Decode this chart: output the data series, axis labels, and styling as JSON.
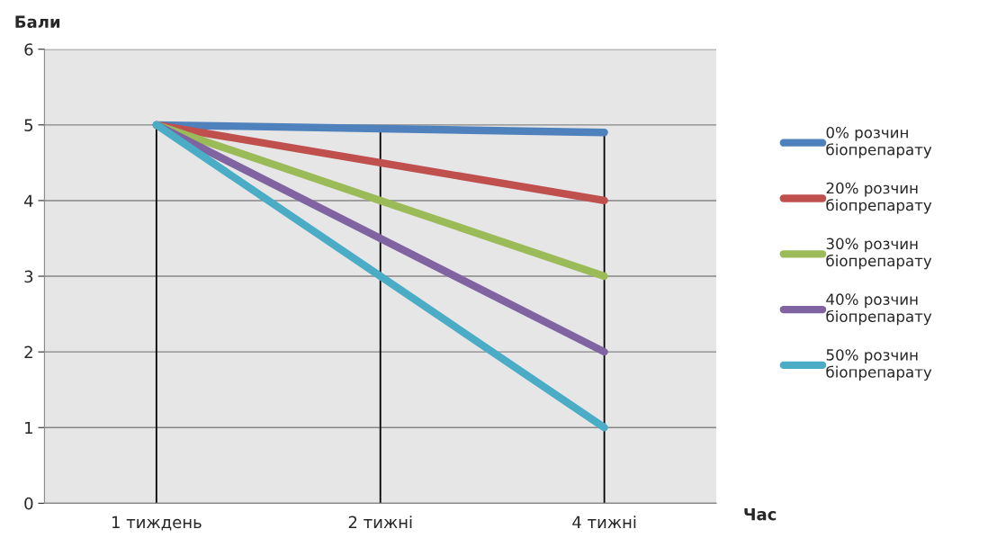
{
  "chart_data": {
    "type": "line",
    "ylabel": "Бали",
    "xlabel": "Час",
    "categories": [
      "1 тиждень",
      "2 тижні",
      "4 тижні"
    ],
    "series": [
      {
        "name": "0% розчин\nбіопрепарату",
        "color": "#4f81bd",
        "values": [
          5,
          4.95,
          4.9
        ]
      },
      {
        "name": "20% розчин\nбіопрепарату",
        "color": "#c0504d",
        "values": [
          5,
          4.5,
          4
        ]
      },
      {
        "name": "30% розчин\nбіопрепарату",
        "color": "#9bbb59",
        "values": [
          5,
          4,
          3
        ]
      },
      {
        "name": "40% розчин\nбіопрепарату",
        "color": "#8064a2",
        "values": [
          5,
          3.5,
          2
        ]
      },
      {
        "name": "50% розчин\nбіопрепарату",
        "color": "#4bacc6",
        "values": [
          5,
          3,
          1
        ]
      }
    ],
    "ylim": [
      0,
      6
    ],
    "yticks": [
      0,
      1,
      2,
      3,
      4,
      5,
      6
    ],
    "grid": "y",
    "legend": "right",
    "marker": "none",
    "line_style": "solid",
    "ref_lines": [
      {
        "axis": "x",
        "value": "1 тиждень",
        "color": "#000000"
      },
      {
        "axis": "x",
        "value": "2 тижні",
        "color": "#000000"
      },
      {
        "axis": "x",
        "value": "4 тижні",
        "color": "#000000"
      }
    ]
  }
}
